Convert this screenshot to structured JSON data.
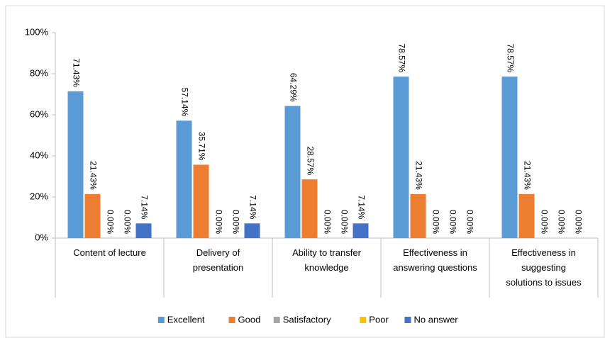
{
  "chart_data": {
    "type": "bar",
    "categories": [
      "Content of lecture",
      "Delivery of presentation",
      "Ability to transfer knowledge",
      "Effectiveness in answering questions",
      "Effectiveness in suggesting solutions to issues"
    ],
    "series": [
      {
        "name": "Excellent",
        "color": "#5b9bd5",
        "values": [
          71.43,
          57.14,
          64.29,
          78.57,
          78.57
        ],
        "value_labels": [
          "71.43%",
          "57.14%",
          "64.29%",
          "78.57%",
          "78.57%"
        ]
      },
      {
        "name": "Good",
        "color": "#ed7d31",
        "values": [
          21.43,
          35.71,
          28.57,
          21.43,
          21.43
        ],
        "value_labels": [
          "21.43%",
          "35.71%",
          "28.57%",
          "21.43%",
          "21.43%"
        ]
      },
      {
        "name": "Satisfactory",
        "color": "#a5a5a5",
        "values": [
          0,
          0,
          0,
          0,
          0
        ],
        "value_labels": [
          "0.00%",
          "0.00%",
          "0.00%",
          "0.00%",
          "0.00%"
        ]
      },
      {
        "name": "Poor",
        "color": "#ffc000",
        "values": [
          0,
          0,
          0,
          0,
          0
        ],
        "value_labels": [
          "0.00%",
          "0.00%",
          "0.00%",
          "0.00%",
          "0.00%"
        ]
      },
      {
        "name": "No answer",
        "color": "#4472c4",
        "values": [
          7.14,
          7.14,
          7.14,
          0,
          0
        ],
        "value_labels": [
          "7.14%",
          "7.14%",
          "7.14%",
          "0.00%",
          "0.00%"
        ]
      }
    ],
    "ylim": [
      0,
      100
    ],
    "yticks": [
      {
        "value": 0,
        "label": "0%"
      },
      {
        "value": 20,
        "label": "20%"
      },
      {
        "value": 40,
        "label": "40%"
      },
      {
        "value": 60,
        "label": "60%"
      },
      {
        "value": 80,
        "label": "80%"
      },
      {
        "value": 100,
        "label": "100%"
      }
    ],
    "legend": "bottom"
  }
}
